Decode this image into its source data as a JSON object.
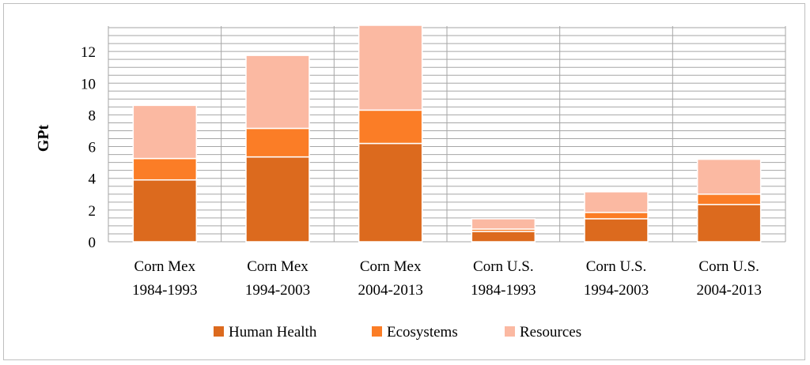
{
  "chart_data": {
    "type": "bar",
    "stacked": true,
    "title": "",
    "xlabel": "",
    "ylabel": "GPt",
    "ylim": [
      0,
      13.6
    ],
    "yticks": [
      0,
      2,
      4,
      6,
      8,
      10,
      12
    ],
    "grid": true,
    "legend_position": "bottom",
    "categories": [
      [
        "Corn Mex",
        "1984-1993"
      ],
      [
        "Corn Mex",
        "1994-2003"
      ],
      [
        "Corn Mex",
        "2004-2013"
      ],
      [
        "Corn U.S.",
        "1984-1993"
      ],
      [
        "Corn U.S.",
        "1994-2003"
      ],
      [
        "Corn U.S.",
        "2004-2013"
      ]
    ],
    "series": [
      {
        "name": "Human Health",
        "color": "#dc6a1e",
        "values": [
          3.9,
          5.35,
          6.2,
          0.65,
          1.45,
          2.35
        ]
      },
      {
        "name": "Ecosystems",
        "color": "#fb7d26",
        "values": [
          1.35,
          1.8,
          2.1,
          0.15,
          0.4,
          0.65
        ]
      },
      {
        "name": "Resources",
        "color": "#fbb9a2",
        "values": [
          3.35,
          4.6,
          5.35,
          0.65,
          1.3,
          2.2
        ]
      }
    ]
  }
}
